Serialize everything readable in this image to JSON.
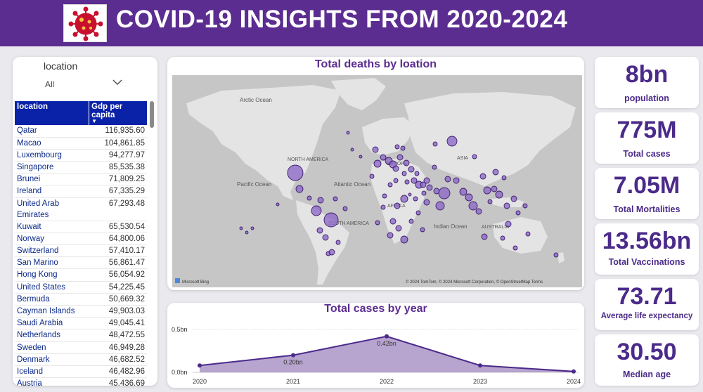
{
  "header": {
    "title": "COVID-19 INSIGHTS FROM 2020-2024"
  },
  "colors": {
    "header": "#5c2d91",
    "accent": "#4b2a8a",
    "table_header": "#0a22a8",
    "bubble": "#8a63c5"
  },
  "slicer": {
    "label": "location",
    "value": "All"
  },
  "table": {
    "columns": [
      "location",
      "Gdp per capita"
    ],
    "rows": [
      [
        "Qatar",
        "116,935.60"
      ],
      [
        "Macao",
        "104,861.85"
      ],
      [
        "Luxembourg",
        "94,277.97"
      ],
      [
        "Singapore",
        "85,535.38"
      ],
      [
        "Brunei",
        "71,809.25"
      ],
      [
        "Ireland",
        "67,335.29"
      ],
      [
        "United Arab Emirates",
        "67,293.48"
      ],
      [
        "Kuwait",
        "65,530.54"
      ],
      [
        "Norway",
        "64,800.06"
      ],
      [
        "Switzerland",
        "57,410.17"
      ],
      [
        "San Marino",
        "56,861.47"
      ],
      [
        "Hong Kong",
        "56,054.92"
      ],
      [
        "United States",
        "54,225.45"
      ],
      [
        "Bermuda",
        "50,669.32"
      ],
      [
        "Cayman Islands",
        "49,903.03"
      ],
      [
        "Saudi Arabia",
        "49,045.41"
      ],
      [
        "Netherlands",
        "48,472.55"
      ],
      [
        "Sweden",
        "46,949.28"
      ],
      [
        "Denmark",
        "46,682.52"
      ],
      [
        "Iceland",
        "46,482.96"
      ],
      [
        "Austria",
        "45,436.69"
      ]
    ]
  },
  "map": {
    "title": "Total deaths by loation",
    "labels": {
      "arctic": "Arctic Ocean",
      "north_america": "NORTH AMERICA",
      "asia": "ASIA",
      "europe": "EUROPE",
      "pacific": "Pacific Ocean",
      "atlantic": "Atlantic Ocean",
      "south_america": "SOUTH AMERICA",
      "africa": "AFRICA",
      "indian": "Indian Ocean",
      "australia": "AUSTRALIA"
    },
    "brand": "Microsoft Bing",
    "attribution": "© 2024 TomTom, © 2024 Microsoft Corporation, © OpenStreetMap  Terms"
  },
  "line_chart": {
    "title": "Total cases by year",
    "y_ticks": [
      "0.5bn",
      "0.0bn"
    ],
    "data_labels": [
      "0.20bn",
      "0.42bn"
    ]
  },
  "chart_data": {
    "type": "area",
    "title": "Total cases by year",
    "x": [
      "2020",
      "2021",
      "2022",
      "2023",
      "2024"
    ],
    "series": [
      {
        "values": [
          0.08,
          0.2,
          0.42,
          0.08,
          0.01
        ]
      }
    ],
    "ylim": [
      0,
      0.5
    ],
    "unit": "bn"
  },
  "kpis": [
    {
      "value": "8bn",
      "label": "population"
    },
    {
      "value": "775M",
      "label": "Total cases"
    },
    {
      "value": "7.05M",
      "label": "Total Mortalities"
    },
    {
      "value": "13.56bn",
      "label": "Total Vaccinations"
    },
    {
      "value": "73.71",
      "label": "Average life expectancy"
    },
    {
      "value": "30.50",
      "label": "Median age"
    }
  ]
}
